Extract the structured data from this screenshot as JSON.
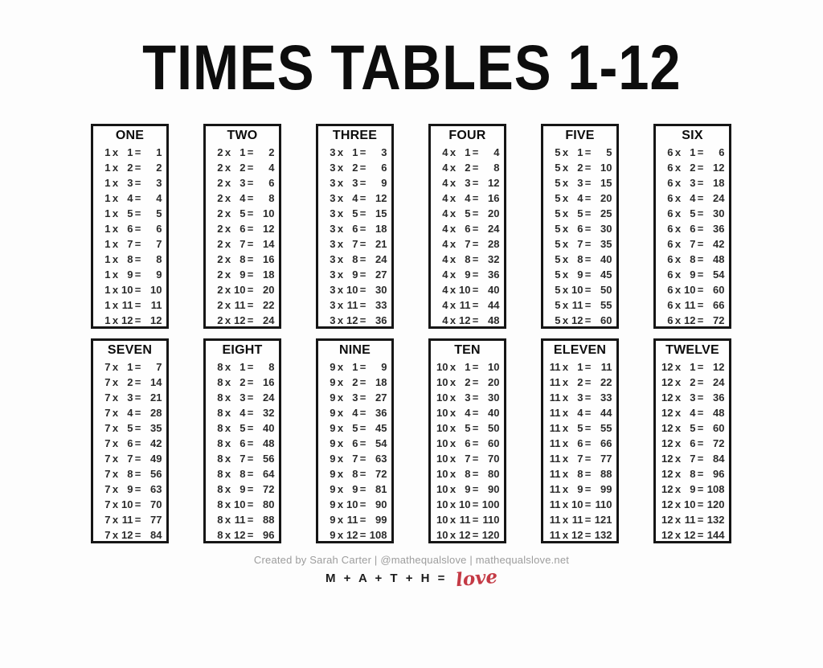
{
  "title": "TIMES TABLES 1-12",
  "operators": {
    "times": "x",
    "equals": "="
  },
  "tables": [
    {
      "label": "ONE",
      "rows": [
        [
          "1",
          "1",
          "1"
        ],
        [
          "1",
          "2",
          "2"
        ],
        [
          "1",
          "3",
          "3"
        ],
        [
          "1",
          "4",
          "4"
        ],
        [
          "1",
          "5",
          "5"
        ],
        [
          "1",
          "6",
          "6"
        ],
        [
          "1",
          "7",
          "7"
        ],
        [
          "1",
          "8",
          "8"
        ],
        [
          "1",
          "9",
          "9"
        ],
        [
          "1",
          "10",
          "10"
        ],
        [
          "1",
          "11",
          "11"
        ],
        [
          "1",
          "12",
          "12"
        ]
      ]
    },
    {
      "label": "TWO",
      "rows": [
        [
          "2",
          "1",
          "2"
        ],
        [
          "2",
          "2",
          "4"
        ],
        [
          "2",
          "3",
          "6"
        ],
        [
          "2",
          "4",
          "8"
        ],
        [
          "2",
          "5",
          "10"
        ],
        [
          "2",
          "6",
          "12"
        ],
        [
          "2",
          "7",
          "14"
        ],
        [
          "2",
          "8",
          "16"
        ],
        [
          "2",
          "9",
          "18"
        ],
        [
          "2",
          "10",
          "20"
        ],
        [
          "2",
          "11",
          "22"
        ],
        [
          "2",
          "12",
          "24"
        ]
      ]
    },
    {
      "label": "THREE",
      "rows": [
        [
          "3",
          "1",
          "3"
        ],
        [
          "3",
          "2",
          "6"
        ],
        [
          "3",
          "3",
          "9"
        ],
        [
          "3",
          "4",
          "12"
        ],
        [
          "3",
          "5",
          "15"
        ],
        [
          "3",
          "6",
          "18"
        ],
        [
          "3",
          "7",
          "21"
        ],
        [
          "3",
          "8",
          "24"
        ],
        [
          "3",
          "9",
          "27"
        ],
        [
          "3",
          "10",
          "30"
        ],
        [
          "3",
          "11",
          "33"
        ],
        [
          "3",
          "12",
          "36"
        ]
      ]
    },
    {
      "label": "FOUR",
      "rows": [
        [
          "4",
          "1",
          "4"
        ],
        [
          "4",
          "2",
          "8"
        ],
        [
          "4",
          "3",
          "12"
        ],
        [
          "4",
          "4",
          "16"
        ],
        [
          "4",
          "5",
          "20"
        ],
        [
          "4",
          "6",
          "24"
        ],
        [
          "4",
          "7",
          "28"
        ],
        [
          "4",
          "8",
          "32"
        ],
        [
          "4",
          "9",
          "36"
        ],
        [
          "4",
          "10",
          "40"
        ],
        [
          "4",
          "11",
          "44"
        ],
        [
          "4",
          "12",
          "48"
        ]
      ]
    },
    {
      "label": "FIVE",
      "rows": [
        [
          "5",
          "1",
          "5"
        ],
        [
          "5",
          "2",
          "10"
        ],
        [
          "5",
          "3",
          "15"
        ],
        [
          "5",
          "4",
          "20"
        ],
        [
          "5",
          "5",
          "25"
        ],
        [
          "5",
          "6",
          "30"
        ],
        [
          "5",
          "7",
          "35"
        ],
        [
          "5",
          "8",
          "40"
        ],
        [
          "5",
          "9",
          "45"
        ],
        [
          "5",
          "10",
          "50"
        ],
        [
          "5",
          "11",
          "55"
        ],
        [
          "5",
          "12",
          "60"
        ]
      ]
    },
    {
      "label": "SIX",
      "rows": [
        [
          "6",
          "1",
          "6"
        ],
        [
          "6",
          "2",
          "12"
        ],
        [
          "6",
          "3",
          "18"
        ],
        [
          "6",
          "4",
          "24"
        ],
        [
          "6",
          "5",
          "30"
        ],
        [
          "6",
          "6",
          "36"
        ],
        [
          "6",
          "7",
          "42"
        ],
        [
          "6",
          "8",
          "48"
        ],
        [
          "6",
          "9",
          "54"
        ],
        [
          "6",
          "10",
          "60"
        ],
        [
          "6",
          "11",
          "66"
        ],
        [
          "6",
          "12",
          "72"
        ]
      ]
    },
    {
      "label": "SEVEN",
      "rows": [
        [
          "7",
          "1",
          "7"
        ],
        [
          "7",
          "2",
          "14"
        ],
        [
          "7",
          "3",
          "21"
        ],
        [
          "7",
          "4",
          "28"
        ],
        [
          "7",
          "5",
          "35"
        ],
        [
          "7",
          "6",
          "42"
        ],
        [
          "7",
          "7",
          "49"
        ],
        [
          "7",
          "8",
          "56"
        ],
        [
          "7",
          "9",
          "63"
        ],
        [
          "7",
          "10",
          "70"
        ],
        [
          "7",
          "11",
          "77"
        ],
        [
          "7",
          "12",
          "84"
        ]
      ]
    },
    {
      "label": "EIGHT",
      "rows": [
        [
          "8",
          "1",
          "8"
        ],
        [
          "8",
          "2",
          "16"
        ],
        [
          "8",
          "3",
          "24"
        ],
        [
          "8",
          "4",
          "32"
        ],
        [
          "8",
          "5",
          "40"
        ],
        [
          "8",
          "6",
          "48"
        ],
        [
          "8",
          "7",
          "56"
        ],
        [
          "8",
          "8",
          "64"
        ],
        [
          "8",
          "9",
          "72"
        ],
        [
          "8",
          "10",
          "80"
        ],
        [
          "8",
          "11",
          "88"
        ],
        [
          "8",
          "12",
          "96"
        ]
      ]
    },
    {
      "label": "NINE",
      "rows": [
        [
          "9",
          "1",
          "9"
        ],
        [
          "9",
          "2",
          "18"
        ],
        [
          "9",
          "3",
          "27"
        ],
        [
          "9",
          "4",
          "36"
        ],
        [
          "9",
          "5",
          "45"
        ],
        [
          "9",
          "6",
          "54"
        ],
        [
          "9",
          "7",
          "63"
        ],
        [
          "9",
          "8",
          "72"
        ],
        [
          "9",
          "9",
          "81"
        ],
        [
          "9",
          "10",
          "90"
        ],
        [
          "9",
          "11",
          "99"
        ],
        [
          "9",
          "12",
          "108"
        ]
      ]
    },
    {
      "label": "TEN",
      "rows": [
        [
          "10",
          "1",
          "10"
        ],
        [
          "10",
          "2",
          "20"
        ],
        [
          "10",
          "3",
          "30"
        ],
        [
          "10",
          "4",
          "40"
        ],
        [
          "10",
          "5",
          "50"
        ],
        [
          "10",
          "6",
          "60"
        ],
        [
          "10",
          "7",
          "70"
        ],
        [
          "10",
          "8",
          "80"
        ],
        [
          "10",
          "9",
          "90"
        ],
        [
          "10",
          "10",
          "100"
        ],
        [
          "10",
          "11",
          "110"
        ],
        [
          "10",
          "12",
          "120"
        ]
      ]
    },
    {
      "label": "ELEVEN",
      "rows": [
        [
          "11",
          "1",
          "11"
        ],
        [
          "11",
          "2",
          "22"
        ],
        [
          "11",
          "3",
          "33"
        ],
        [
          "11",
          "4",
          "44"
        ],
        [
          "11",
          "5",
          "55"
        ],
        [
          "11",
          "6",
          "66"
        ],
        [
          "11",
          "7",
          "77"
        ],
        [
          "11",
          "8",
          "88"
        ],
        [
          "11",
          "9",
          "99"
        ],
        [
          "11",
          "10",
          "110"
        ],
        [
          "11",
          "11",
          "121"
        ],
        [
          "11",
          "12",
          "132"
        ]
      ]
    },
    {
      "label": "TWELVE",
      "rows": [
        [
          "12",
          "1",
          "12"
        ],
        [
          "12",
          "2",
          "24"
        ],
        [
          "12",
          "3",
          "36"
        ],
        [
          "12",
          "4",
          "48"
        ],
        [
          "12",
          "5",
          "60"
        ],
        [
          "12",
          "6",
          "72"
        ],
        [
          "12",
          "7",
          "84"
        ],
        [
          "12",
          "8",
          "96"
        ],
        [
          "12",
          "9",
          "108"
        ],
        [
          "12",
          "10",
          "120"
        ],
        [
          "12",
          "11",
          "132"
        ],
        [
          "12",
          "12",
          "144"
        ]
      ]
    }
  ],
  "footer": {
    "credit": "Created by Sarah Carter | @mathequalslove | mathequalslove.net",
    "math_label": "M + A + T + H =",
    "love_label": "love"
  },
  "colors": {
    "text_black": "#0d0d0d",
    "equation_text": "#2b2b2b",
    "border_black": "#161616",
    "credit_gray": "#9d9d9d",
    "accent_red": "#c43a45",
    "background": "#fdfdfd"
  }
}
